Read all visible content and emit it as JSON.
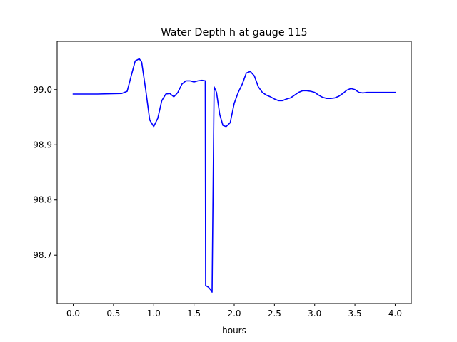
{
  "chart_data": {
    "type": "line",
    "title": "Water Depth h at gauge 115",
    "xlabel": "hours",
    "ylabel": "",
    "xlim": [
      -0.2,
      4.2
    ],
    "ylim": [
      98.6125,
      99.0875
    ],
    "xticks": [
      0.0,
      0.5,
      1.0,
      1.5,
      2.0,
      2.5,
      3.0,
      3.5,
      4.0
    ],
    "xtick_labels": [
      "0.0",
      "0.5",
      "1.0",
      "1.5",
      "2.0",
      "2.5",
      "3.0",
      "3.5",
      "4.0"
    ],
    "yticks": [
      98.7,
      98.8,
      98.9,
      99.0
    ],
    "ytick_labels": [
      "98.7",
      "98.8",
      "98.9",
      "99.0"
    ],
    "grid": false,
    "series": [
      {
        "color": "#0000ff",
        "x": [
          0.0,
          0.3,
          0.6,
          0.67,
          0.72,
          0.77,
          0.82,
          0.85,
          0.9,
          0.95,
          1.0,
          1.05,
          1.1,
          1.15,
          1.2,
          1.25,
          1.3,
          1.35,
          1.4,
          1.45,
          1.5,
          1.55,
          1.6,
          1.64,
          1.645,
          1.68,
          1.72,
          1.725,
          1.75,
          1.78,
          1.82,
          1.86,
          1.9,
          1.95,
          2.0,
          2.05,
          2.1,
          2.15,
          2.2,
          2.25,
          2.3,
          2.35,
          2.4,
          2.45,
          2.5,
          2.55,
          2.6,
          2.65,
          2.7,
          2.75,
          2.8,
          2.85,
          2.9,
          2.95,
          3.0,
          3.05,
          3.1,
          3.15,
          3.2,
          3.25,
          3.3,
          3.35,
          3.4,
          3.45,
          3.5,
          3.55,
          3.6,
          3.65,
          3.7,
          3.75,
          3.8,
          3.85,
          3.9,
          3.95,
          4.0
        ],
        "y": [
          98.992,
          98.992,
          98.993,
          98.997,
          99.025,
          99.052,
          99.056,
          99.05,
          99.0,
          98.945,
          98.933,
          98.948,
          98.98,
          98.992,
          98.993,
          98.987,
          98.995,
          99.01,
          99.016,
          99.016,
          99.014,
          99.016,
          99.017,
          99.016,
          98.645,
          98.642,
          98.635,
          98.633,
          99.005,
          98.995,
          98.955,
          98.935,
          98.933,
          98.94,
          98.975,
          98.995,
          99.01,
          99.03,
          99.033,
          99.025,
          99.005,
          98.995,
          98.99,
          98.987,
          98.983,
          98.98,
          98.98,
          98.983,
          98.985,
          98.99,
          98.995,
          98.998,
          98.998,
          98.997,
          98.995,
          98.99,
          98.986,
          98.984,
          98.984,
          98.985,
          98.988,
          98.993,
          98.999,
          99.002,
          99.0,
          98.995,
          98.994,
          98.995,
          98.995,
          98.995,
          98.995,
          98.995,
          98.995,
          98.995,
          98.995
        ]
      }
    ]
  }
}
